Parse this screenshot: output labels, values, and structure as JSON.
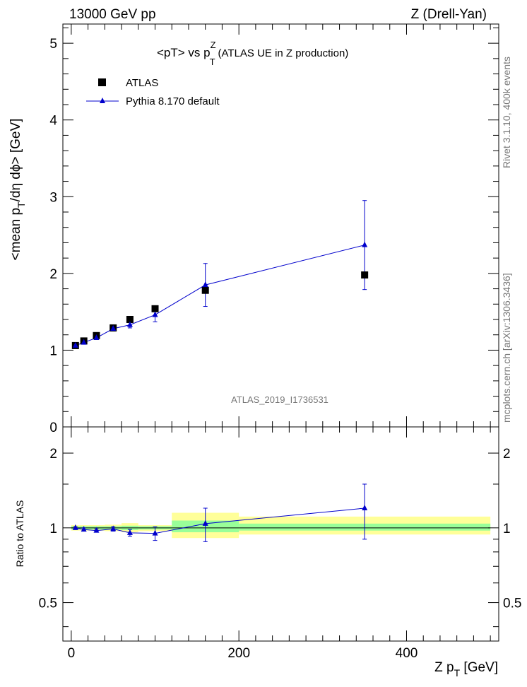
{
  "header": {
    "left": "13000 GeV pp",
    "right": "Z (Drell-Yan)"
  },
  "side_labels": {
    "rivet": "Rivet 3.1.10,  400k events",
    "mcplots": "mcplots.cern.ch [arXiv:1306.3436]"
  },
  "colors": {
    "mc_line": "#0000cc",
    "band_inner": "#99ff99",
    "band_outer": "#ffff99",
    "data_marker": "#000000"
  },
  "chart_data": [
    {
      "type": "scatter",
      "title": "<pT> vs p",
      "title_sup": "Z",
      "title_sub": "T",
      "title_suffix": "(ATLAS UE in Z production)",
      "watermark": "ATLAS_2019_I1736531",
      "ylabel_parts": [
        "<mean p",
        "T",
        "/dη dϕ> [GeV]"
      ],
      "ylim": [
        0,
        5.25
      ],
      "y_ticks": [
        "1",
        "2",
        "3",
        "4",
        "5"
      ],
      "y_tick_values": [
        1,
        2,
        3,
        4,
        5
      ],
      "y_tick_zero": "0",
      "xlim": [
        -10,
        510
      ],
      "legend": [
        {
          "label": "ATLAS",
          "marker": "square"
        },
        {
          "label": "Pythia 8.170 default",
          "marker": "triangle-line"
        }
      ],
      "series": [
        {
          "name": "ATLAS",
          "x": [
            5,
            15,
            30,
            50,
            70,
            100,
            160,
            350
          ],
          "y": [
            1.06,
            1.12,
            1.19,
            1.29,
            1.4,
            1.54,
            1.78,
            1.98
          ]
        },
        {
          "name": "Pythia 8.170 default",
          "x": [
            5,
            15,
            30,
            50,
            70,
            100,
            160,
            350
          ],
          "y": [
            1.06,
            1.1,
            1.16,
            1.28,
            1.33,
            1.46,
            1.85,
            2.37
          ],
          "yerr": [
            0.01,
            0.02,
            0.02,
            0.03,
            0.04,
            0.09,
            0.28,
            0.58
          ]
        }
      ]
    },
    {
      "type": "scatter",
      "ylabel": "Ratio to ATLAS",
      "xlabel_parts": [
        "Z p",
        "T",
        " [GeV]"
      ],
      "ylim": [
        0.35,
        2.55
      ],
      "y_ticks": [
        "0.5",
        "1",
        "2"
      ],
      "y_tick_values": [
        0.5,
        1,
        2
      ],
      "x_ticks": [
        "0",
        "200",
        "400"
      ],
      "x_tick_values": [
        0,
        200,
        400
      ],
      "xlim": [
        -10,
        510
      ],
      "bands": [
        {
          "x0": 0,
          "x1": 10,
          "inner": [
            0.985,
            1.015
          ],
          "outer": [
            0.975,
            1.025
          ]
        },
        {
          "x0": 10,
          "x1": 20,
          "inner": [
            0.985,
            1.015
          ],
          "outer": [
            0.975,
            1.025
          ]
        },
        {
          "x0": 20,
          "x1": 40,
          "inner": [
            0.985,
            1.015
          ],
          "outer": [
            0.975,
            1.025
          ]
        },
        {
          "x0": 40,
          "x1": 60,
          "inner": [
            0.985,
            1.015
          ],
          "outer": [
            0.97,
            1.03
          ]
        },
        {
          "x0": 60,
          "x1": 80,
          "inner": [
            0.98,
            1.02
          ],
          "outer": [
            0.96,
            1.045
          ]
        },
        {
          "x0": 80,
          "x1": 120,
          "inner": [
            0.985,
            1.015
          ],
          "outer": [
            0.97,
            1.025
          ]
        },
        {
          "x0": 120,
          "x1": 200,
          "inner": [
            0.96,
            1.07
          ],
          "outer": [
            0.91,
            1.15
          ]
        },
        {
          "x0": 200,
          "x1": 500,
          "inner": [
            0.975,
            1.04
          ],
          "outer": [
            0.94,
            1.11
          ]
        }
      ],
      "series": [
        {
          "name": "Pythia 8.170 default",
          "x": [
            5,
            15,
            30,
            50,
            70,
            100,
            160,
            350
          ],
          "y": [
            1.0,
            0.985,
            0.975,
            0.99,
            0.955,
            0.95,
            1.04,
            1.2
          ],
          "yerr": [
            0.01,
            0.015,
            0.015,
            0.02,
            0.03,
            0.06,
            0.16,
            0.3
          ]
        }
      ]
    }
  ]
}
